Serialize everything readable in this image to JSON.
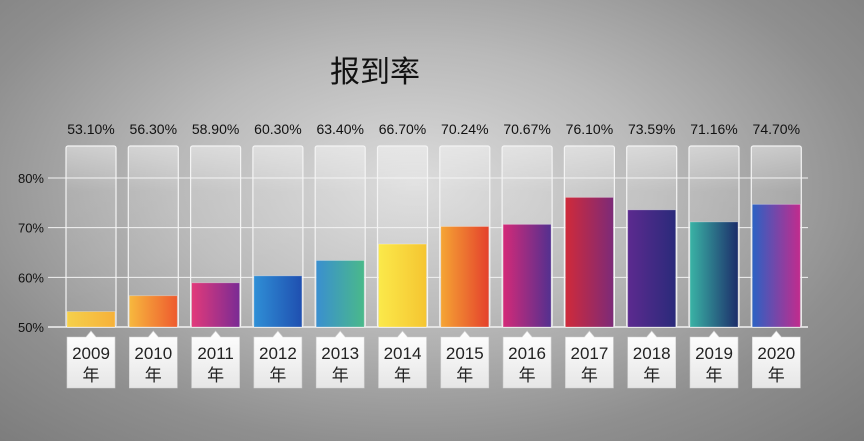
{
  "chart_data": {
    "type": "bar",
    "title": "报到率",
    "categories": [
      "2009",
      "2010",
      "2011",
      "2012",
      "2013",
      "2014",
      "2015",
      "2016",
      "2017",
      "2018",
      "2019",
      "2020"
    ],
    "category_suffix": "年",
    "values": [
      53.1,
      56.3,
      58.9,
      60.3,
      63.4,
      66.7,
      70.24,
      70.67,
      76.1,
      73.59,
      71.16,
      74.7
    ],
    "value_labels": [
      "53.10%",
      "56.30%",
      "58.90%",
      "60.30%",
      "63.40%",
      "66.70%",
      "70.24%",
      "70.67%",
      "76.10%",
      "73.59%",
      "71.16%",
      "74.70%"
    ],
    "yticks": [
      50,
      60,
      70,
      80
    ],
    "ytick_labels": [
      "50%",
      "60%",
      "70%",
      "80%"
    ],
    "ylim": [
      50,
      80
    ],
    "grid": true,
    "xlabel": "",
    "ylabel": "",
    "bar_gradients": [
      [
        "#f5d04a",
        "#f6b13a"
      ],
      [
        "#f7b83e",
        "#ee5a2e"
      ],
      [
        "#e23a7a",
        "#7a2b94"
      ],
      [
        "#2f8fd6",
        "#1f4fb0"
      ],
      [
        "#3a8fd0",
        "#4ab98a"
      ],
      [
        "#fbe94a",
        "#f5c531"
      ],
      [
        "#f5a534",
        "#e4412c"
      ],
      [
        "#d42a78",
        "#53308f"
      ],
      [
        "#d02a3a",
        "#7c2a78"
      ],
      [
        "#5c2a8f",
        "#2a2a7a"
      ],
      [
        "#3ab3a5",
        "#1c2d6a"
      ],
      [
        "#2b62c4",
        "#c22b8d"
      ]
    ]
  }
}
